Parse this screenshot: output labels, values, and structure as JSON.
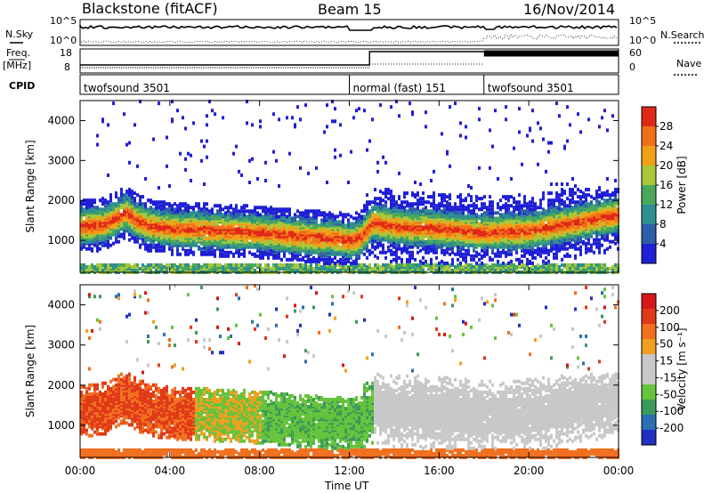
{
  "header": {
    "station": "Blackstone (fitACF)",
    "beam": "Beam 15",
    "date": "16/Nov/2014"
  },
  "side_labels": {
    "nsky": "N.Sky",
    "freq_top": "Freq.",
    "freq_unit": "[MHz]",
    "cpid": "CPID",
    "nsearch": "N.Search",
    "nave": "Nave"
  },
  "noise_axis": {
    "left_ticks": [
      "10^5",
      "10^0"
    ],
    "right_ticks": [
      "10^5",
      "10^0"
    ]
  },
  "freq_axis": {
    "left_ticks": [
      "18",
      "8"
    ],
    "right_ticks": [
      "60",
      "0"
    ]
  },
  "cpid_segments": [
    {
      "label": "twofsound 3501",
      "start_hour": 0,
      "end_hour": 12.0
    },
    {
      "label": "normal (fast) 151",
      "start_hour": 12.0,
      "end_hour": 18.0
    },
    {
      "label": "twofsound 3501",
      "start_hour": 18.0,
      "end_hour": 24
    }
  ],
  "x_axis": {
    "label": "Time UT",
    "ticks": [
      "00:00",
      "04:00",
      "08:00",
      "12:00",
      "16:00",
      "20:00",
      "00:00"
    ],
    "range_hours": [
      0,
      24
    ]
  },
  "colors": {
    "power_scale": [
      "#1f1fd6",
      "#2d5fa8",
      "#2e8f8f",
      "#4aa85a",
      "#a8c83a",
      "#f2a019",
      "#f07018",
      "#e02818"
    ],
    "velocity_scale": [
      "#2030c0",
      "#2a6fb0",
      "#3c9a5a",
      "#66c33c",
      "#c8c8c8",
      "#c8c8c8",
      "#f0a020",
      "#f07020",
      "#e03a18",
      "#d81818"
    ]
  },
  "chart_data": [
    {
      "type": "heatmap",
      "panel": "power",
      "xlabel": "",
      "ylabel": "Slant Range [km]",
      "xlim": [
        0,
        24
      ],
      "ylim": [
        200,
        4500
      ],
      "y_ticks": [
        "4000",
        "3000",
        "2000",
        "1000"
      ],
      "y_tick_values": [
        4000,
        3000,
        2000,
        1000
      ],
      "colorbar_label": "Power [dB]",
      "colorbar_ticks": [
        "28",
        "24",
        "20",
        "16",
        "12",
        "8",
        "4"
      ],
      "colorbar_range": [
        0,
        32
      ],
      "band_center_km": [
        [
          0.0,
          1350
        ],
        [
          1.0,
          1400
        ],
        [
          1.5,
          1550
        ],
        [
          2.0,
          1700
        ],
        [
          2.5,
          1500
        ],
        [
          3.0,
          1380
        ],
        [
          4.0,
          1300
        ],
        [
          6.0,
          1250
        ],
        [
          8.0,
          1200
        ],
        [
          10.0,
          1100
        ],
        [
          11.5,
          1050
        ],
        [
          12.0,
          1000
        ],
        [
          12.5,
          1100
        ],
        [
          13.0,
          1450
        ],
        [
          14.0,
          1350
        ],
        [
          16.0,
          1300
        ],
        [
          18.0,
          1200
        ],
        [
          20.0,
          1250
        ],
        [
          22.0,
          1450
        ],
        [
          24.0,
          1650
        ]
      ]
    },
    {
      "type": "heatmap",
      "panel": "velocity",
      "xlabel": "Time UT",
      "ylabel": "Slant Range [km]",
      "xlim": [
        0,
        24
      ],
      "ylim": [
        200,
        4500
      ],
      "y_ticks": [
        "4000",
        "3000",
        "2000",
        "1000"
      ],
      "y_tick_values": [
        4000,
        3000,
        2000,
        1000
      ],
      "colorbar_label": "Velocity [m s⁻¹]",
      "colorbar_ticks": [
        "200",
        "100",
        "50",
        "15",
        "-15",
        "-50",
        "-100",
        "-200"
      ],
      "colorbar_range": [
        -250,
        250
      ]
    }
  ]
}
